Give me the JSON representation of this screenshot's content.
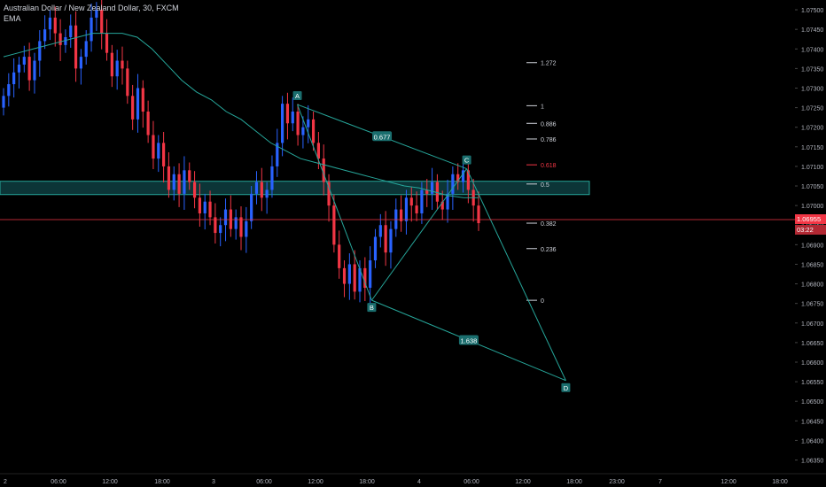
{
  "header": {
    "title": "Australian Dollar / New Zealand Dollar, 30, FXCM",
    "indicator": "EMA"
  },
  "colors": {
    "background": "#000000",
    "up": "#2962ff",
    "down": "#f23645",
    "ema": "#26a69a",
    "pattern": "#26a69a",
    "fib_label_box": "#1a6e6e",
    "price_line": "#f23645",
    "axis_text": "#b2b5be"
  },
  "chart_data": {
    "type": "candlestick",
    "title": "Australian Dollar / New Zealand Dollar, 30, FXCM",
    "y_axis": {
      "ticks": [
        "1.07500",
        "1.07450",
        "1.07400",
        "1.07350",
        "1.07300",
        "1.07250",
        "1.07200",
        "1.07150",
        "1.07100",
        "1.07050",
        "1.07000",
        "1.06950",
        "1.06900",
        "1.06850",
        "1.06800",
        "1.06750",
        "1.06700",
        "1.06650",
        "1.06600",
        "1.06550",
        "1.06500",
        "1.06450",
        "1.06400",
        "1.06350"
      ],
      "range": [
        1.06315,
        1.07525
      ]
    },
    "x_axis": {
      "ticks": [
        "2",
        "06:00",
        "12:00",
        "18:00",
        "3",
        "06:00",
        "12:00",
        "18:00",
        "4",
        "06:00",
        "12:00",
        "18:00",
        "23:00",
        "7",
        "12:00",
        "18:00"
      ]
    },
    "current_price": {
      "value": "1.06955",
      "countdown": "03:22"
    },
    "ohlc_close_path": [
      1.0728,
      1.0731,
      1.0734,
      1.0736,
      1.0738,
      1.0732,
      1.0737,
      1.0742,
      1.0745,
      1.0748,
      1.0744,
      1.0741,
      1.0743,
      1.0746,
      1.0735,
      1.0738,
      1.0742,
      1.0748,
      1.075,
      1.0744,
      1.0739,
      1.0733,
      1.0737,
      1.0735,
      1.0728,
      1.0722,
      1.073,
      1.0724,
      1.0718,
      1.0712,
      1.0716,
      1.071,
      1.0704,
      1.0708,
      1.0703,
      1.0709,
      1.0706,
      1.0702,
      1.0698,
      1.0701,
      1.0697,
      1.0693,
      1.0695,
      1.0699,
      1.0694,
      1.0697,
      1.0692,
      1.0696,
      1.0703,
      1.0706,
      1.0702,
      1.0704,
      1.071,
      1.0716,
      1.0726,
      1.0721,
      1.0724,
      1.0718,
      1.072,
      1.0722,
      1.0716,
      1.0712,
      1.0706,
      1.07,
      1.069,
      1.0684,
      1.068,
      1.0685,
      1.0678,
      1.0684,
      1.0679,
      1.0686,
      1.0692,
      1.0695,
      1.0688,
      1.0694,
      1.0699,
      1.0696,
      1.0702,
      1.07,
      1.0698,
      1.0704,
      1.0703,
      1.0706,
      1.0701,
      1.0699,
      1.0703,
      1.0708,
      1.0706,
      1.0709,
      1.0704,
      1.07,
      1.06955
    ],
    "ema_path": [
      1.0738,
      1.0739,
      1.074,
      1.0741,
      1.0742,
      1.0743,
      1.0744,
      1.0744,
      1.0744,
      1.0743,
      1.074,
      1.0736,
      1.0732,
      1.0729,
      1.0727,
      1.0724,
      1.0722,
      1.0719,
      1.0716,
      1.0714,
      1.0712,
      1.0711,
      1.071,
      1.0709,
      1.0708,
      1.0707,
      1.0706,
      1.0705,
      1.07045,
      1.07035,
      1.07025,
      1.0702,
      1.0702
    ],
    "fibonacci": {
      "levels": [
        {
          "label": "1.272",
          "price": 1.07365
        },
        {
          "label": "1",
          "price": 1.07255
        },
        {
          "label": "0.886",
          "price": 1.0721
        },
        {
          "label": "0.786",
          "price": 1.0717
        },
        {
          "label": "0.618",
          "price": 1.07104
        },
        {
          "label": "0.5",
          "price": 1.07055
        },
        {
          "label": "0.382",
          "price": 1.06955
        },
        {
          "label": "0.236",
          "price": 1.0689
        },
        {
          "label": "0",
          "price": 1.06758
        }
      ]
    },
    "zone": {
      "top": 1.07062,
      "bottom": 1.07028
    },
    "pattern": {
      "points": [
        {
          "label": "A",
          "x": 0.36,
          "price": 1.07258
        },
        {
          "label": "B",
          "x": 0.45,
          "price": 1.06758
        },
        {
          "label": "C",
          "x": 0.565,
          "price": 1.07094
        },
        {
          "label": "D",
          "x": 0.685,
          "price": 1.06553
        }
      ],
      "ratios": [
        {
          "label": "0.677",
          "between": "A-C"
        },
        {
          "label": "1.638",
          "between": "B-D"
        }
      ]
    }
  }
}
